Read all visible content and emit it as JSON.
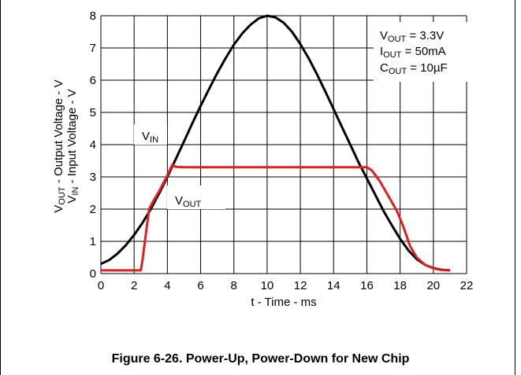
{
  "chart_data": {
    "type": "line",
    "xlabel": "t - Time - ms",
    "ylabel_line1": [
      "V",
      "OUT",
      " - Output Voltage - V"
    ],
    "ylabel_line2": [
      "V",
      "IN",
      " - Input Voltage - V"
    ],
    "xlim": [
      0,
      22
    ],
    "ylim": [
      0,
      8
    ],
    "xticks": [
      "0",
      "2",
      "4",
      "6",
      "8",
      "10",
      "12",
      "14",
      "16",
      "18",
      "20",
      "22"
    ],
    "yticks": [
      "0",
      "1",
      "2",
      "3",
      "4",
      "5",
      "6",
      "7",
      "8"
    ],
    "grid": true,
    "series": [
      {
        "label": [
          "V",
          "IN"
        ],
        "color": "#000000",
        "points": [
          [
            0,
            0.3
          ],
          [
            0.5,
            0.42
          ],
          [
            1,
            0.62
          ],
          [
            1.5,
            0.88
          ],
          [
            2,
            1.2
          ],
          [
            2.5,
            1.57
          ],
          [
            3,
            2
          ],
          [
            3.5,
            2.48
          ],
          [
            4,
            3
          ],
          [
            4.5,
            3.55
          ],
          [
            5,
            4.1
          ],
          [
            5.5,
            4.66
          ],
          [
            6,
            5.2
          ],
          [
            6.5,
            5.72
          ],
          [
            7,
            6.22
          ],
          [
            7.5,
            6.68
          ],
          [
            8,
            7.1
          ],
          [
            8.5,
            7.45
          ],
          [
            9,
            7.72
          ],
          [
            9.5,
            7.92
          ],
          [
            10,
            8
          ],
          [
            10.5,
            7.95
          ],
          [
            11,
            7.78
          ],
          [
            11.5,
            7.5
          ],
          [
            12,
            7.12
          ],
          [
            12.5,
            6.68
          ],
          [
            13,
            6.18
          ],
          [
            13.5,
            5.65
          ],
          [
            14,
            5.1
          ],
          [
            14.5,
            4.55
          ],
          [
            15,
            4
          ],
          [
            15.5,
            3.45
          ],
          [
            16,
            2.95
          ],
          [
            16.5,
            2.45
          ],
          [
            17,
            1.95
          ],
          [
            17.5,
            1.5
          ],
          [
            18,
            1.08
          ],
          [
            18.5,
            0.72
          ],
          [
            19,
            0.45
          ],
          [
            19.5,
            0.27
          ],
          [
            20,
            0.17
          ],
          [
            20.5,
            0.12
          ],
          [
            21,
            0.1
          ]
        ]
      },
      {
        "label": [
          "V",
          "OUT"
        ],
        "color": "#e02020",
        "points": [
          [
            0,
            0.1
          ],
          [
            2.4,
            0.1
          ],
          [
            2.5,
            0.4
          ],
          [
            2.7,
            1.2
          ],
          [
            2.9,
            2.0
          ],
          [
            3.1,
            2.2
          ],
          [
            3.5,
            2.55
          ],
          [
            4,
            3.05
          ],
          [
            4.3,
            3.38
          ],
          [
            4.5,
            3.31
          ],
          [
            5,
            3.3
          ],
          [
            16,
            3.3
          ],
          [
            16.3,
            3.2
          ],
          [
            16.8,
            2.85
          ],
          [
            17.3,
            2.4
          ],
          [
            17.8,
            1.95
          ],
          [
            18.2,
            1.45
          ],
          [
            18.6,
            0.85
          ],
          [
            19,
            0.5
          ],
          [
            19.5,
            0.27
          ],
          [
            20,
            0.16
          ],
          [
            20.5,
            0.11
          ],
          [
            21,
            0.1
          ]
        ]
      }
    ],
    "annotations": [
      [
        "V",
        "OUT",
        " = 3.3V"
      ],
      [
        "I",
        "OUT",
        " = 50mA"
      ],
      [
        "C",
        "OUT",
        " = 10µF"
      ]
    ]
  },
  "caption": "Figure 6-26. Power-Up, Power-Down for New Chip"
}
